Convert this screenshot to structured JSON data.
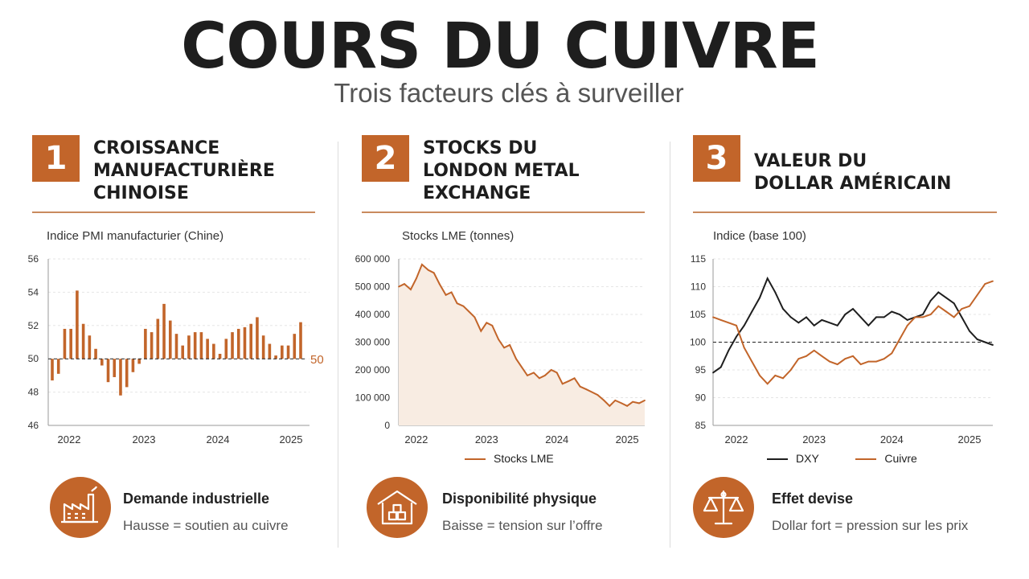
{
  "header": {
    "title": "COURS DU CUIVRE",
    "subtitle": "Trois facteurs clés à surveiller"
  },
  "colors": {
    "accent": "#c2652a",
    "dark_line": "#1e1e1e",
    "grid": "#e5e5e5",
    "area_fill": "#f8ece2"
  },
  "panels": [
    {
      "number": "1",
      "title": "CROISSANCE\nMANUFACTURIÈRE\nCHINOISE",
      "axis_title": "Indice PMI manufacturier (Chine)",
      "footer": {
        "icon": "factory-icon",
        "heading": "Demande industrielle",
        "text": "Hausse = soutien au cuivre"
      }
    },
    {
      "number": "2",
      "title": "STOCKS DU\nLONDON METAL\nEXCHANGE",
      "axis_title": "Stocks LME (tonnes)",
      "footer": {
        "icon": "warehouse-icon",
        "heading": "Disponibilité physique",
        "text": "Baisse = tension sur l’offre"
      }
    },
    {
      "number": "3",
      "title": "VALEUR DU\nDOLLAR AMÉRICAIN",
      "axis_title": "Indice (base 100)",
      "footer": {
        "icon": "scales-icon",
        "heading": "Effet devise",
        "text": "Dollar fort = pression sur les prix"
      }
    }
  ],
  "chart_data": [
    {
      "type": "bar",
      "ylim": [
        46,
        56
      ],
      "yticks": [
        "56",
        "54",
        "52",
        "50",
        "48",
        "46"
      ],
      "xticks": [
        "2022",
        "2023",
        "2024",
        "2025"
      ],
      "reference_line": {
        "value": 50,
        "label": "50"
      },
      "values": [
        48.7,
        49.1,
        51.8,
        51.8,
        54.1,
        52.1,
        51.4,
        50.6,
        49.6,
        48.6,
        48.9,
        47.8,
        48.3,
        49.2,
        49.7,
        51.8,
        51.6,
        52.4,
        53.3,
        52.3,
        51.5,
        50.8,
        51.4,
        51.6,
        51.6,
        51.2,
        50.9,
        50.3,
        51.2,
        51.6,
        51.8,
        51.9,
        52.1,
        52.5,
        51.4,
        50.9,
        50.2,
        50.8,
        50.8,
        51.5,
        52.2
      ]
    },
    {
      "type": "area",
      "ylim": [
        0,
        600000
      ],
      "yticks": [
        "600 000",
        "500 000",
        "400 000",
        "300 000",
        "200 000",
        "100 000",
        "0"
      ],
      "xticks": [
        "2022",
        "2023",
        "2024",
        "2025"
      ],
      "series": [
        {
          "name": "Stocks LME",
          "x": [
            2021.75,
            2021.83,
            2021.92,
            2022.0,
            2022.08,
            2022.17,
            2022.25,
            2022.33,
            2022.42,
            2022.5,
            2022.58,
            2022.67,
            2022.75,
            2022.83,
            2022.92,
            2023.0,
            2023.08,
            2023.17,
            2023.25,
            2023.33,
            2023.42,
            2023.5,
            2023.58,
            2023.67,
            2023.75,
            2023.83,
            2023.92,
            2024.0,
            2024.08,
            2024.17,
            2024.25,
            2024.33,
            2024.42,
            2024.5,
            2024.58,
            2024.67,
            2024.75,
            2024.83,
            2024.92,
            2025.0,
            2025.08,
            2025.17,
            2025.25
          ],
          "values": [
            500000,
            510000,
            490000,
            530000,
            580000,
            560000,
            550000,
            510000,
            470000,
            480000,
            440000,
            430000,
            410000,
            390000,
            340000,
            370000,
            360000,
            310000,
            280000,
            290000,
            240000,
            210000,
            180000,
            190000,
            170000,
            180000,
            200000,
            190000,
            150000,
            160000,
            170000,
            140000,
            130000,
            120000,
            110000,
            90000,
            70000,
            90000,
            80000,
            70000,
            85000,
            80000,
            90000
          ]
        }
      ]
    },
    {
      "type": "line",
      "ylim": [
        85,
        115
      ],
      "yticks": [
        "115",
        "110",
        "105",
        "100",
        "95",
        "90",
        "85"
      ],
      "xticks": [
        "2022",
        "2023",
        "2024",
        "2025"
      ],
      "reference_line": {
        "value": 100
      },
      "x": [
        2021.7,
        2021.8,
        2021.9,
        2022.0,
        2022.1,
        2022.2,
        2022.3,
        2022.4,
        2022.5,
        2022.6,
        2022.7,
        2022.8,
        2022.9,
        2023.0,
        2023.1,
        2023.2,
        2023.3,
        2023.4,
        2023.5,
        2023.6,
        2023.7,
        2023.8,
        2023.9,
        2024.0,
        2024.1,
        2024.2,
        2024.3,
        2024.4,
        2024.5,
        2024.6,
        2024.7,
        2024.8,
        2024.9,
        2025.0,
        2025.1,
        2025.2,
        2025.3
      ],
      "series": [
        {
          "name": "DXY",
          "color": "#1e1e1e",
          "values": [
            94.5,
            95.5,
            98.5,
            101,
            103,
            105.5,
            108,
            111.5,
            109,
            106,
            104.5,
            103.5,
            104.5,
            103,
            104,
            103.5,
            103,
            105,
            106,
            104.5,
            103,
            104.5,
            104.5,
            105.5,
            105,
            104,
            104.5,
            105,
            107.5,
            109,
            108,
            107,
            104.5,
            102,
            100.5,
            100,
            99.5
          ]
        },
        {
          "name": "Cuivre",
          "color": "#c2652a",
          "values": [
            104.5,
            104,
            103.5,
            103,
            99,
            96.5,
            94,
            92.5,
            94,
            93.5,
            95,
            97,
            97.5,
            98.5,
            97.5,
            96.5,
            96,
            97,
            97.5,
            96,
            96.5,
            96.5,
            97,
            98,
            100.5,
            103,
            104.5,
            104.5,
            105,
            106.5,
            105.5,
            104.5,
            106,
            106.5,
            108.5,
            110.5,
            111
          ]
        }
      ]
    }
  ]
}
